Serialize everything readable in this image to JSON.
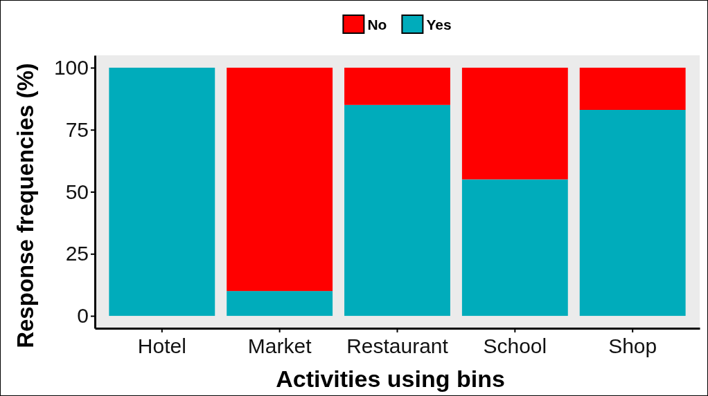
{
  "chart_data": {
    "type": "bar",
    "xlabel": "Activities using bins",
    "ylabel": "Response frequencies (%)",
    "categories": [
      "Hotel",
      "Market",
      "Restaurant",
      "School",
      "Shop"
    ],
    "stacked": true,
    "series": [
      {
        "name": "Yes",
        "color": "#00acbb",
        "values": [
          100,
          10,
          85,
          55,
          83
        ]
      },
      {
        "name": "No",
        "color": "#ff0000",
        "values": [
          0,
          90,
          15,
          45,
          17
        ]
      }
    ],
    "ylim": [
      -5,
      105
    ],
    "yticks": [
      0,
      25,
      50,
      75,
      100
    ],
    "legend": "top",
    "grid": false
  }
}
